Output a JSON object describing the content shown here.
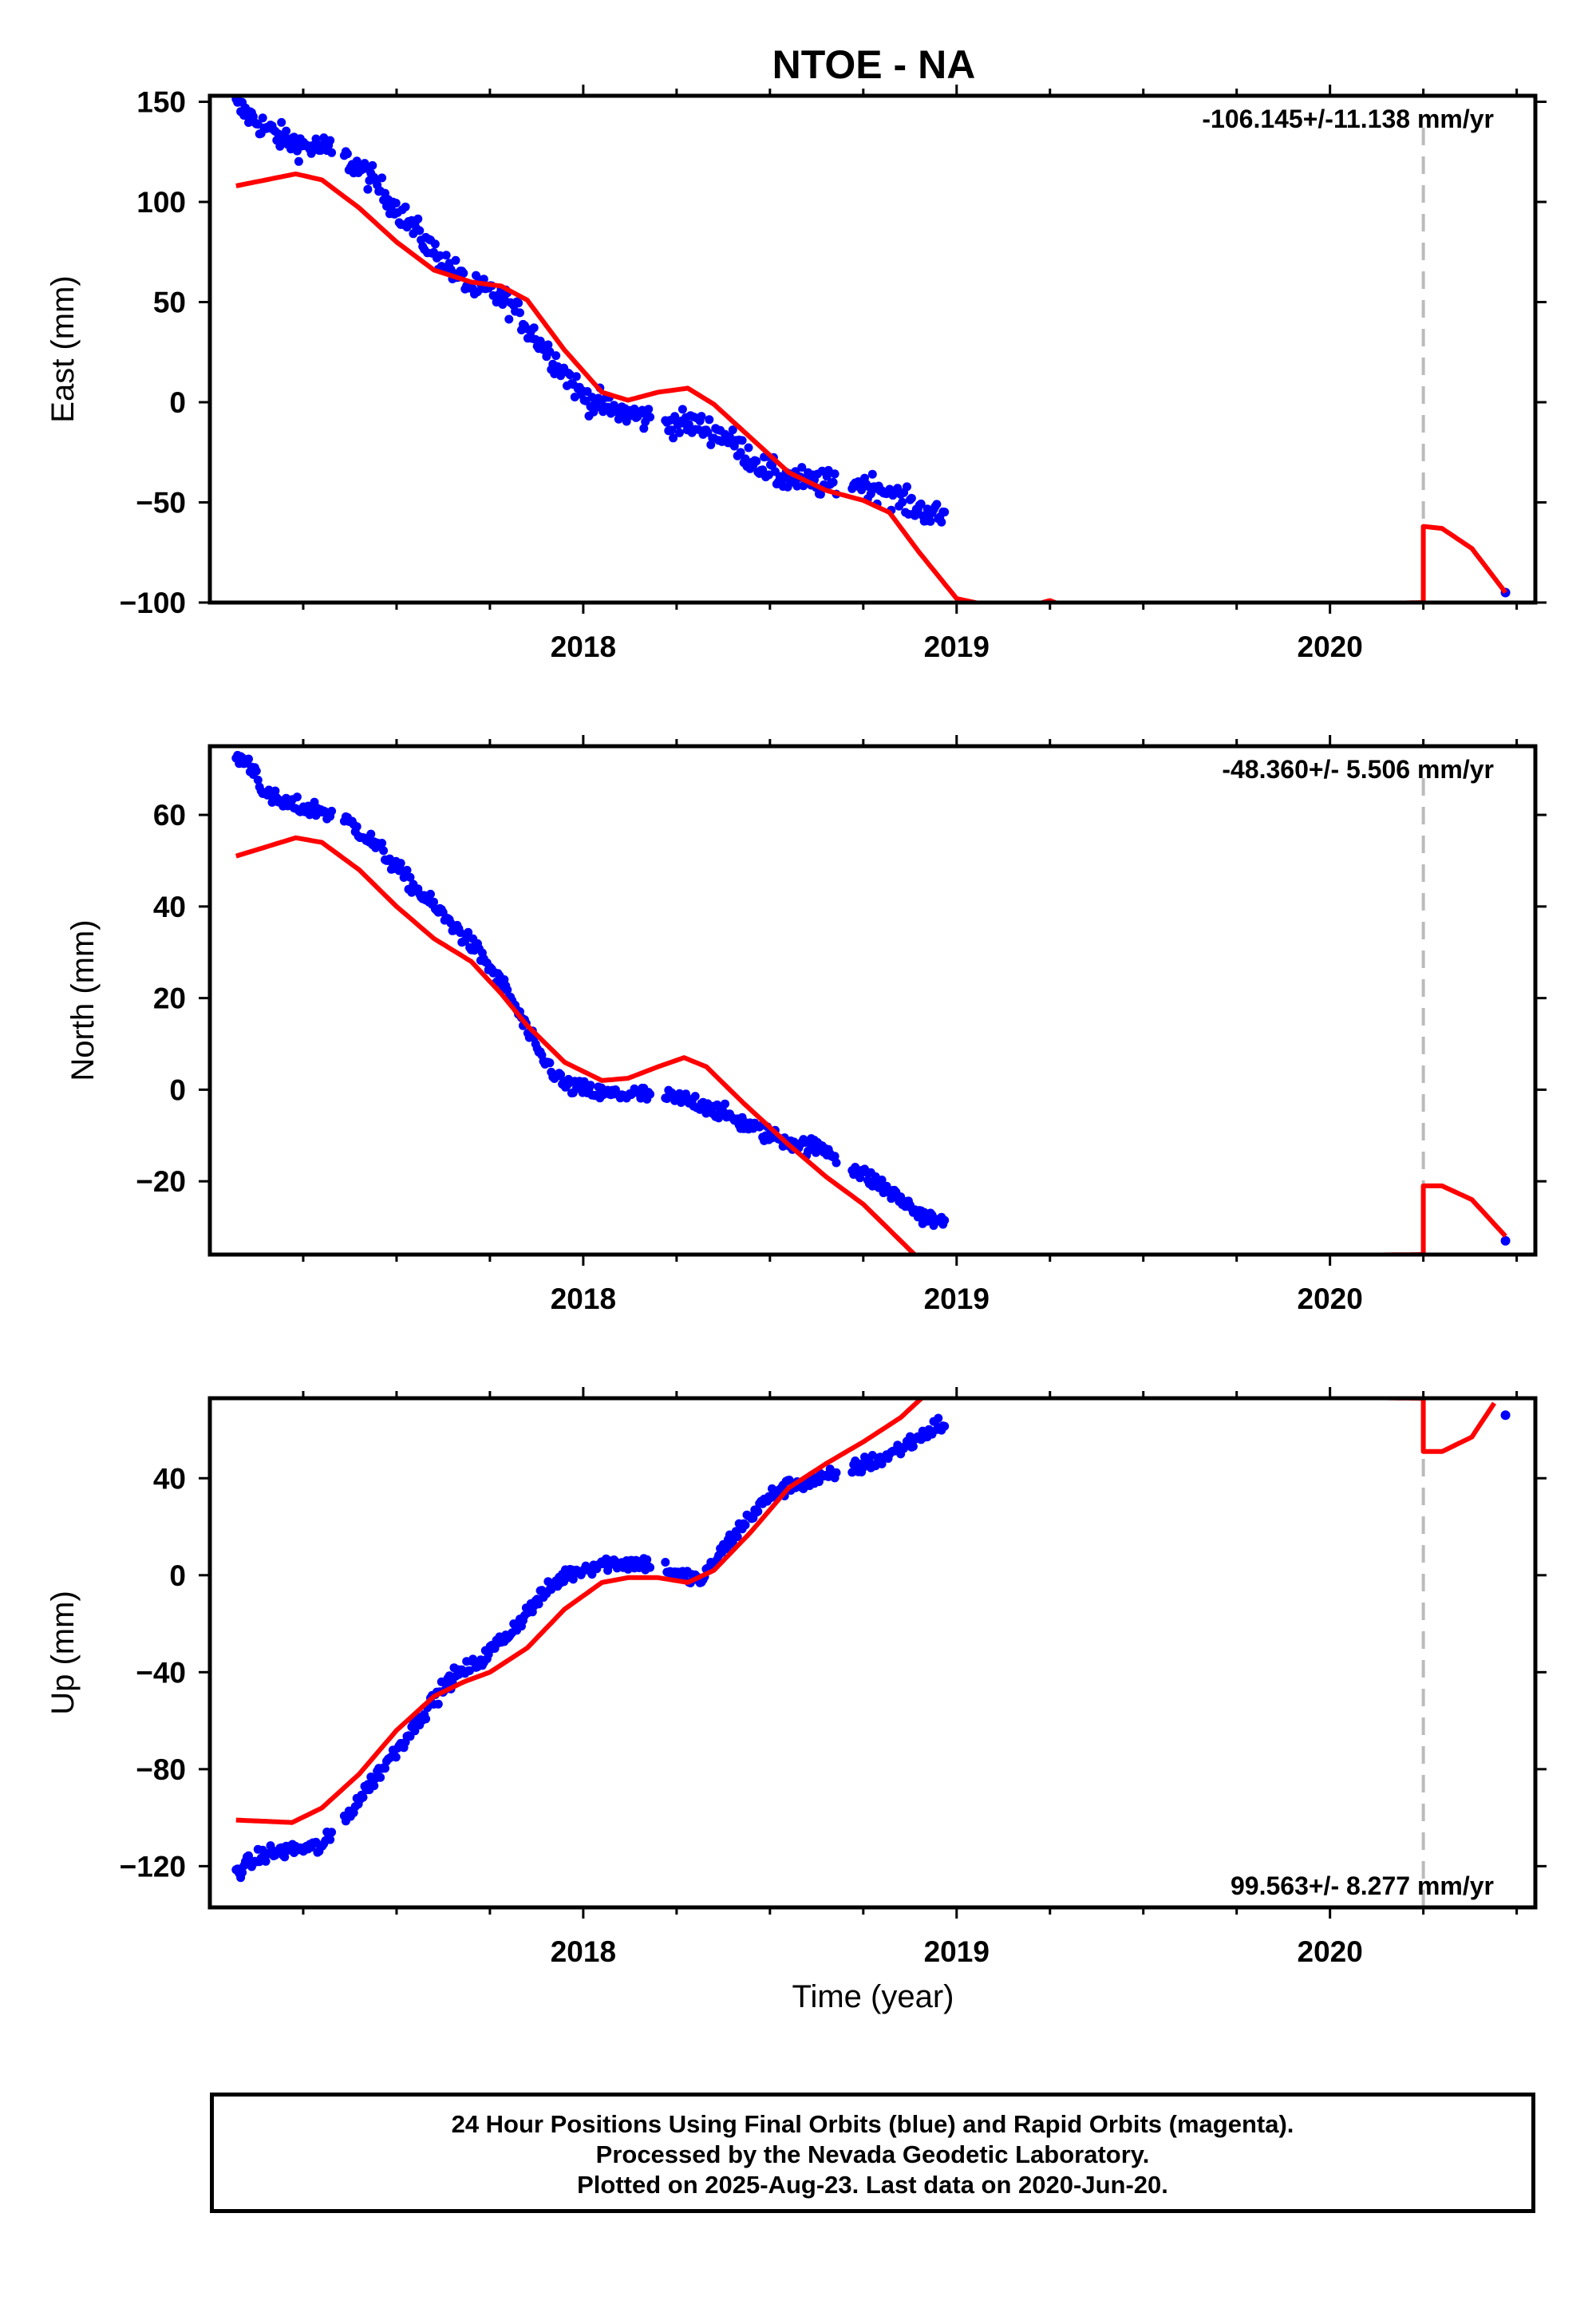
{
  "title": "NTOE - NA",
  "xlabel": "Time (year)",
  "footer": {
    "line1": "24 Hour Positions Using Final Orbits (blue) and Rapid Orbits (magenta).",
    "line2": "Processed by the Nevada Geodetic Laboratory.",
    "line3": "Plotted on 2025-Aug-23. Last data on 2020-Jun-20."
  },
  "colors": {
    "data": "#0000ff",
    "model": "#ff0000",
    "break_line": "#bbbbbb",
    "axes": "#000000"
  },
  "chart_data": [
    {
      "type": "scatter",
      "ylabel": "East (mm)",
      "xlim": [
        2017.0,
        2020.55
      ],
      "ylim": [
        -100,
        153
      ],
      "xticks": [
        2018,
        2019,
        2020
      ],
      "yticks": [
        -100,
        -50,
        0,
        50,
        100,
        150
      ],
      "rate": "-106.145+/-11.138 mm/yr",
      "rate_position": "top-right",
      "equipment_change": 2020.25,
      "observations_trend": [
        [
          2017.07,
          148
        ],
        [
          2017.12,
          141
        ],
        [
          2017.18,
          133
        ],
        [
          2017.25,
          128
        ],
        [
          2017.33,
          126
        ],
        [
          2017.42,
          114
        ],
        [
          2017.5,
          97
        ],
        [
          2017.6,
          75
        ],
        [
          2017.7,
          57
        ],
        [
          2017.75,
          55
        ],
        [
          2017.8,
          50
        ],
        [
          2017.85,
          38
        ],
        [
          2017.92,
          22
        ],
        [
          2018.0,
          3
        ],
        [
          2018.08,
          -4
        ],
        [
          2018.15,
          -7
        ],
        [
          2018.22,
          -10
        ],
        [
          2018.3,
          -11
        ],
        [
          2018.38,
          -17
        ],
        [
          2018.45,
          -28
        ],
        [
          2018.52,
          -37
        ],
        [
          2018.58,
          -39
        ],
        [
          2018.65,
          -41
        ],
        [
          2018.72,
          -40
        ],
        [
          2018.8,
          -43
        ],
        [
          2018.87,
          -51
        ],
        [
          2018.95,
          -57
        ],
        [
          2020.47,
          -95
        ]
      ],
      "model_curve": [
        [
          2017.07,
          108
        ],
        [
          2017.15,
          111
        ],
        [
          2017.23,
          114
        ],
        [
          2017.3,
          111
        ],
        [
          2017.4,
          97
        ],
        [
          2017.5,
          80
        ],
        [
          2017.6,
          66
        ],
        [
          2017.7,
          60
        ],
        [
          2017.78,
          58
        ],
        [
          2017.85,
          51
        ],
        [
          2017.95,
          26
        ],
        [
          2018.05,
          5
        ],
        [
          2018.12,
          1
        ],
        [
          2018.2,
          5
        ],
        [
          2018.28,
          7
        ],
        [
          2018.35,
          -1
        ],
        [
          2018.45,
          -18
        ],
        [
          2018.55,
          -35
        ],
        [
          2018.65,
          -44
        ],
        [
          2018.75,
          -49
        ],
        [
          2018.82,
          -55
        ],
        [
          2018.9,
          -75
        ],
        [
          2019.0,
          -98
        ],
        [
          2019.15,
          -104
        ],
        [
          2019.25,
          -99
        ],
        [
          2019.32,
          -104
        ],
        [
          2020.25,
          -100
        ],
        [
          2020.25,
          -62
        ],
        [
          2020.3,
          -63
        ],
        [
          2020.38,
          -73
        ],
        [
          2020.47,
          -95
        ]
      ],
      "scatter": 18
    },
    {
      "type": "scatter",
      "ylabel": "North (mm)",
      "xlim": [
        2017.0,
        2020.55
      ],
      "ylim": [
        -36,
        75
      ],
      "xticks": [
        2018,
        2019,
        2020
      ],
      "yticks": [
        -20,
        0,
        20,
        40,
        60
      ],
      "rate": "-48.360+/- 5.506 mm/yr",
      "rate_position": "top-right",
      "equipment_change": 2020.25,
      "observations_trend": [
        [
          2017.07,
          73
        ],
        [
          2017.12,
          70
        ],
        [
          2017.15,
          64
        ],
        [
          2017.22,
          62
        ],
        [
          2017.3,
          61
        ],
        [
          2017.38,
          58
        ],
        [
          2017.45,
          53
        ],
        [
          2017.55,
          44
        ],
        [
          2017.65,
          36
        ],
        [
          2017.72,
          30
        ],
        [
          2017.8,
          21
        ],
        [
          2017.88,
          8
        ],
        [
          2017.95,
          1
        ],
        [
          2018.05,
          -1
        ],
        [
          2018.15,
          -1
        ],
        [
          2018.25,
          -2
        ],
        [
          2018.32,
          -3
        ],
        [
          2018.42,
          -7
        ],
        [
          2018.5,
          -10
        ],
        [
          2018.58,
          -12
        ],
        [
          2018.65,
          -13
        ],
        [
          2018.72,
          -17
        ],
        [
          2018.8,
          -21
        ],
        [
          2018.9,
          -27
        ],
        [
          2018.95,
          -29
        ],
        [
          2020.47,
          -33
        ]
      ],
      "model_curve": [
        [
          2017.07,
          51
        ],
        [
          2017.15,
          53
        ],
        [
          2017.23,
          55
        ],
        [
          2017.3,
          54
        ],
        [
          2017.4,
          48
        ],
        [
          2017.5,
          40
        ],
        [
          2017.6,
          33
        ],
        [
          2017.7,
          28
        ],
        [
          2017.78,
          21
        ],
        [
          2017.85,
          14
        ],
        [
          2017.95,
          6
        ],
        [
          2018.05,
          2
        ],
        [
          2018.12,
          2.5
        ],
        [
          2018.2,
          5
        ],
        [
          2018.27,
          7
        ],
        [
          2018.33,
          5
        ],
        [
          2018.43,
          -3
        ],
        [
          2018.55,
          -12
        ],
        [
          2018.65,
          -19
        ],
        [
          2018.75,
          -25
        ],
        [
          2018.85,
          -33
        ],
        [
          2018.9,
          -37
        ],
        [
          2020.25,
          -36
        ],
        [
          2020.25,
          -21
        ],
        [
          2020.3,
          -21
        ],
        [
          2020.38,
          -24
        ],
        [
          2020.47,
          -32
        ]
      ],
      "scatter": 5
    },
    {
      "type": "scatter",
      "ylabel": "Up (mm)",
      "xlim": [
        2017.0,
        2020.55
      ],
      "ylim": [
        -137,
        73
      ],
      "xticks": [
        2018,
        2019,
        2020
      ],
      "yticks": [
        -120,
        -80,
        -40,
        0,
        40
      ],
      "rate": "99.563+/- 8.277 mm/yr",
      "rate_position": "bottom-right",
      "equipment_change": 2020.25,
      "observations_trend": [
        [
          2017.07,
          -122
        ],
        [
          2017.15,
          -115
        ],
        [
          2017.22,
          -113
        ],
        [
          2017.3,
          -112
        ],
        [
          2017.35,
          -103
        ],
        [
          2017.42,
          -88
        ],
        [
          2017.5,
          -72
        ],
        [
          2017.58,
          -55
        ],
        [
          2017.65,
          -42
        ],
        [
          2017.72,
          -36
        ],
        [
          2017.8,
          -24
        ],
        [
          2017.88,
          -10
        ],
        [
          2017.95,
          0
        ],
        [
          2018.05,
          5
        ],
        [
          2018.12,
          5
        ],
        [
          2018.2,
          5
        ],
        [
          2018.25,
          0
        ],
        [
          2018.32,
          -2
        ],
        [
          2018.38,
          12
        ],
        [
          2018.45,
          25
        ],
        [
          2018.52,
          35
        ],
        [
          2018.58,
          38
        ],
        [
          2018.65,
          40
        ],
        [
          2018.72,
          44
        ],
        [
          2018.8,
          48
        ],
        [
          2018.88,
          55
        ],
        [
          2018.95,
          62
        ],
        [
          2020.47,
          66
        ]
      ],
      "model_curve": [
        [
          2017.07,
          -101
        ],
        [
          2017.15,
          -101.5
        ],
        [
          2017.22,
          -102
        ],
        [
          2017.3,
          -96
        ],
        [
          2017.4,
          -82
        ],
        [
          2017.5,
          -64
        ],
        [
          2017.6,
          -50
        ],
        [
          2017.68,
          -44
        ],
        [
          2017.75,
          -40
        ],
        [
          2017.85,
          -30
        ],
        [
          2017.95,
          -14
        ],
        [
          2018.05,
          -3
        ],
        [
          2018.12,
          -1
        ],
        [
          2018.2,
          -1
        ],
        [
          2018.28,
          -3
        ],
        [
          2018.35,
          2
        ],
        [
          2018.45,
          18
        ],
        [
          2018.55,
          36
        ],
        [
          2018.65,
          46
        ],
        [
          2018.75,
          55
        ],
        [
          2018.85,
          65
        ],
        [
          2018.92,
          75
        ],
        [
          2020.25,
          73
        ],
        [
          2020.25,
          51
        ],
        [
          2020.3,
          51
        ],
        [
          2020.38,
          57
        ],
        [
          2020.44,
          71
        ]
      ],
      "scatter": 9
    }
  ]
}
